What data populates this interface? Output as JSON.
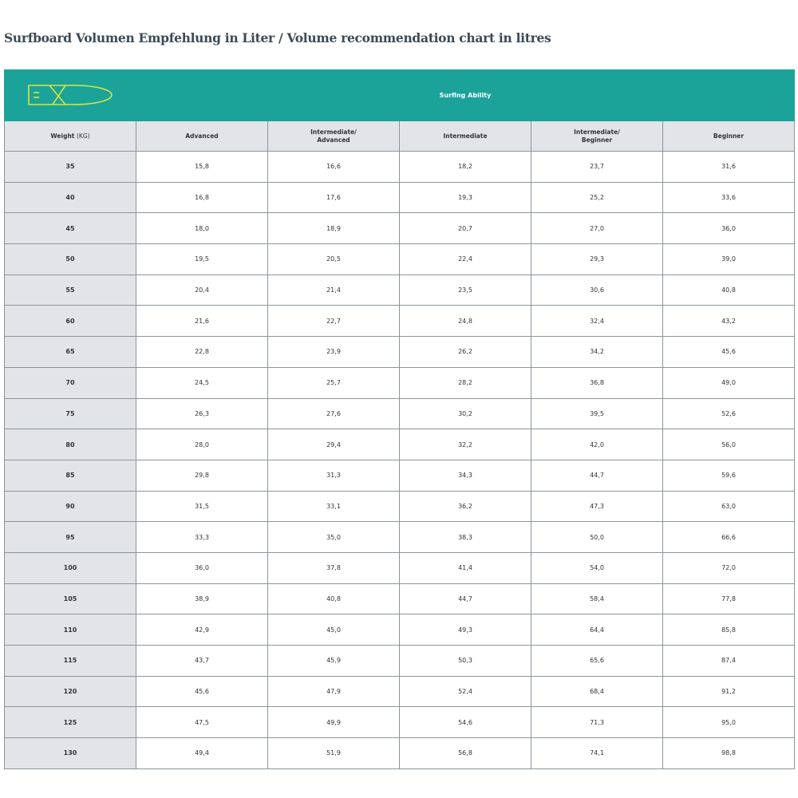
{
  "title": "Surfboard Volumen Empfehlung in Liter / Volume recommendation chart in litres",
  "header": {
    "logo_icon": "surfboard-icon",
    "group_label": "Surfing Ability",
    "weight_label": "Weight",
    "weight_unit": "(KG)",
    "columns": [
      "Advanced",
      "Intermediate/\nAdvanced",
      "Intermediate",
      "Intermediate/\nBeginner",
      "Beginner"
    ]
  },
  "colors": {
    "teal": "#1ba39a",
    "logo": "#d4e83a",
    "header_gray": "#e2e4e8"
  },
  "rows": [
    {
      "weight": "35",
      "values": [
        "15,8",
        "16,6",
        "18,2",
        "23,7",
        "31,6"
      ]
    },
    {
      "weight": "40",
      "values": [
        "16,8",
        "17,6",
        "19,3",
        "25,2",
        "33,6"
      ]
    },
    {
      "weight": "45",
      "values": [
        "18,0",
        "18,9",
        "20,7",
        "27,0",
        "36,0"
      ]
    },
    {
      "weight": "50",
      "values": [
        "19,5",
        "20,5",
        "22,4",
        "29,3",
        "39,0"
      ]
    },
    {
      "weight": "55",
      "values": [
        "20,4",
        "21,4",
        "23,5",
        "30,6",
        "40,8"
      ]
    },
    {
      "weight": "60",
      "values": [
        "21,6",
        "22,7",
        "24,8",
        "32,4",
        "43,2"
      ]
    },
    {
      "weight": "65",
      "values": [
        "22,8",
        "23,9",
        "26,2",
        "34,2",
        "45,6"
      ]
    },
    {
      "weight": "70",
      "values": [
        "24,5",
        "25,7",
        "28,2",
        "36,8",
        "49,0"
      ]
    },
    {
      "weight": "75",
      "values": [
        "26,3",
        "27,6",
        "30,2",
        "39,5",
        "52,6"
      ]
    },
    {
      "weight": "80",
      "values": [
        "28,0",
        "29,4",
        "32,2",
        "42,0",
        "56,0"
      ]
    },
    {
      "weight": "85",
      "values": [
        "29,8",
        "31,3",
        "34,3",
        "44,7",
        "59,6"
      ]
    },
    {
      "weight": "90",
      "values": [
        "31,5",
        "33,1",
        "36,2",
        "47,3",
        "63,0"
      ]
    },
    {
      "weight": "95",
      "values": [
        "33,3",
        "35,0",
        "38,3",
        "50,0",
        "66,6"
      ]
    },
    {
      "weight": "100",
      "values": [
        "36,0",
        "37,8",
        "41,4",
        "54,0",
        "72,0"
      ]
    },
    {
      "weight": "105",
      "values": [
        "38,9",
        "40,8",
        "44,7",
        "58,4",
        "77,8"
      ]
    },
    {
      "weight": "110",
      "values": [
        "42,9",
        "45,0",
        "49,3",
        "64,4",
        "85,8"
      ]
    },
    {
      "weight": "115",
      "values": [
        "43,7",
        "45,9",
        "50,3",
        "65,6",
        "87,4"
      ]
    },
    {
      "weight": "120",
      "values": [
        "45,6",
        "47,9",
        "52,4",
        "68,4",
        "91,2"
      ]
    },
    {
      "weight": "125",
      "values": [
        "47,5",
        "49,9",
        "54,6",
        "71,3",
        "95,0"
      ]
    },
    {
      "weight": "130",
      "values": [
        "49,4",
        "51,9",
        "56,8",
        "74,1",
        "98,8"
      ]
    }
  ]
}
